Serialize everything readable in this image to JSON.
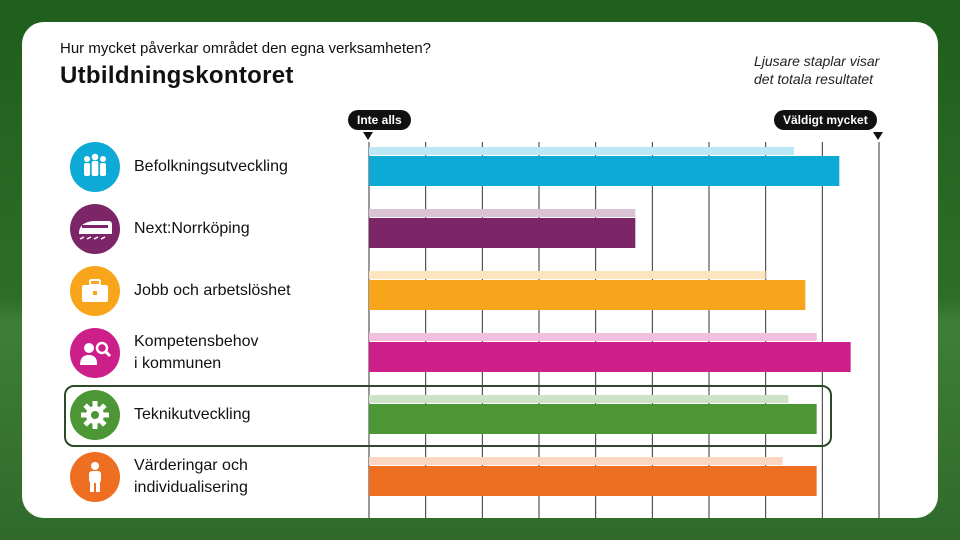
{
  "header": {
    "question": "Hur mycket påverkar området den egna verksamheten?",
    "title": "Utbildningskontoret",
    "note_line1": "Ljusare staplar visar",
    "note_line2": "det totala resultatet"
  },
  "scale": {
    "low_label": "Inte alls",
    "high_label": "Väldigt mycket"
  },
  "colors": {
    "Befolkningsutveckling": "#0eaad6",
    "Next:Norrköping": "#7c2668",
    "Jobb och arbetslöshet": "#f8a51c",
    "Kompetensbehov i kommunen": "#cc1f8a",
    "Teknikutveckling": "#4c9635",
    "Värderingar och individualisering": "#ef6f22"
  },
  "chart_data": {
    "type": "bar",
    "orientation": "horizontal",
    "xlim": [
      0,
      9
    ],
    "grid": true,
    "categories": [
      {
        "key": "Befolkningsutveckling",
        "lines": [
          "Befolkningsutveckling"
        ],
        "icon": "people-icon"
      },
      {
        "key": "Next:Norrköping",
        "lines": [
          "Next:Norrköping"
        ],
        "icon": "train-icon"
      },
      {
        "key": "Jobb och arbetslöshet",
        "lines": [
          "Jobb och arbetslöshet"
        ],
        "icon": "briefcase-icon"
      },
      {
        "key": "Kompetensbehov i kommunen",
        "lines": [
          "Kompetensbehov",
          "i kommunen"
        ],
        "icon": "person-search-icon"
      },
      {
        "key": "Teknikutveckling",
        "lines": [
          "Teknikutveckling"
        ],
        "icon": "gear-icon"
      },
      {
        "key": "Värderingar och individualisering",
        "lines": [
          "Värderingar och",
          "individualisering"
        ],
        "icon": "person-icon"
      }
    ],
    "series": [
      {
        "name": "Totalt resultat",
        "shade": "light",
        "values": [
          7.5,
          4.7,
          7.0,
          7.9,
          7.4,
          7.3
        ]
      },
      {
        "name": "Utbildningskontoret",
        "shade": "dark",
        "values": [
          8.3,
          4.7,
          7.7,
          8.5,
          7.9,
          7.9
        ]
      }
    ],
    "highlighted": "Teknikutveckling"
  }
}
